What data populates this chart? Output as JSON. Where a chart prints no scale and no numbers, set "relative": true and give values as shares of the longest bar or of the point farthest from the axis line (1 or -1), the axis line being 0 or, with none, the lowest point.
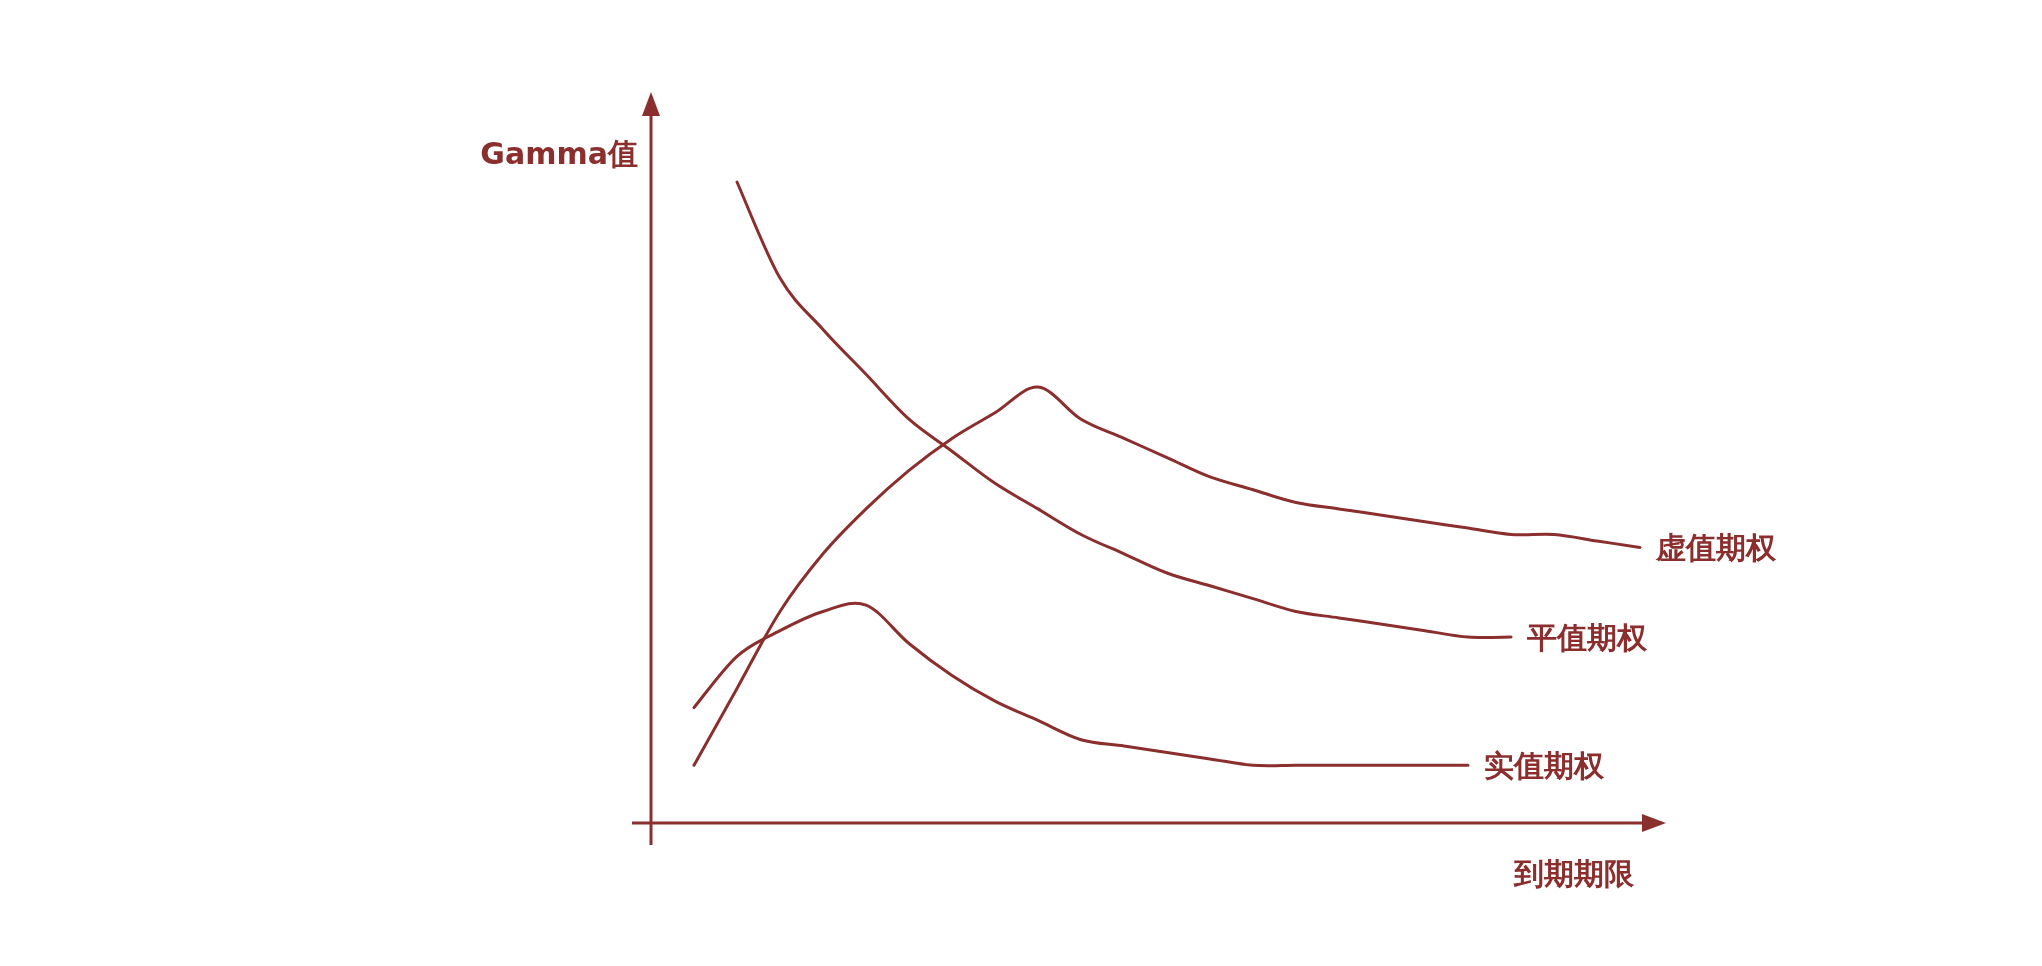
{
  "chart_data": {
    "type": "line",
    "relative": true,
    "xlabel": "到期期限",
    "ylabel": "Gamma值",
    "marker": "none",
    "line_style": "solid",
    "categories": [
      null,
      null,
      null,
      null,
      null,
      null,
      null,
      null,
      null,
      null,
      null,
      null,
      null,
      null,
      null,
      null,
      null,
      null,
      null,
      null,
      null,
      null,
      null,
      null
    ],
    "series": [
      {
        "name": "虚值期权",
        "color": "#8b2e2e",
        "values": [
          null,
          0.09,
          0.21,
          0.33,
          0.42,
          0.49,
          0.55,
          0.6,
          0.64,
          0.68,
          0.63,
          0.6,
          0.57,
          0.54,
          0.52,
          0.5,
          0.49,
          0.48,
          0.47,
          0.46,
          0.45,
          0.45,
          0.44,
          0.43
        ]
      },
      {
        "name": "平值期权",
        "color": "#8b2e2e",
        "values": [
          null,
          null,
          1.0,
          0.85,
          0.77,
          0.7,
          0.63,
          0.58,
          0.53,
          0.49,
          0.45,
          0.42,
          0.39,
          0.37,
          0.35,
          0.33,
          0.32,
          0.31,
          0.3,
          0.29,
          0.29,
          null,
          null,
          null
        ]
      },
      {
        "name": "实值期权",
        "color": "#8b2e2e",
        "values": [
          null,
          0.18,
          0.26,
          0.3,
          0.33,
          0.34,
          0.28,
          0.23,
          0.19,
          0.16,
          0.13,
          0.12,
          0.11,
          0.1,
          0.09,
          0.09,
          0.09,
          0.09,
          0.09,
          0.09,
          null,
          null,
          null,
          null
        ]
      }
    ]
  }
}
